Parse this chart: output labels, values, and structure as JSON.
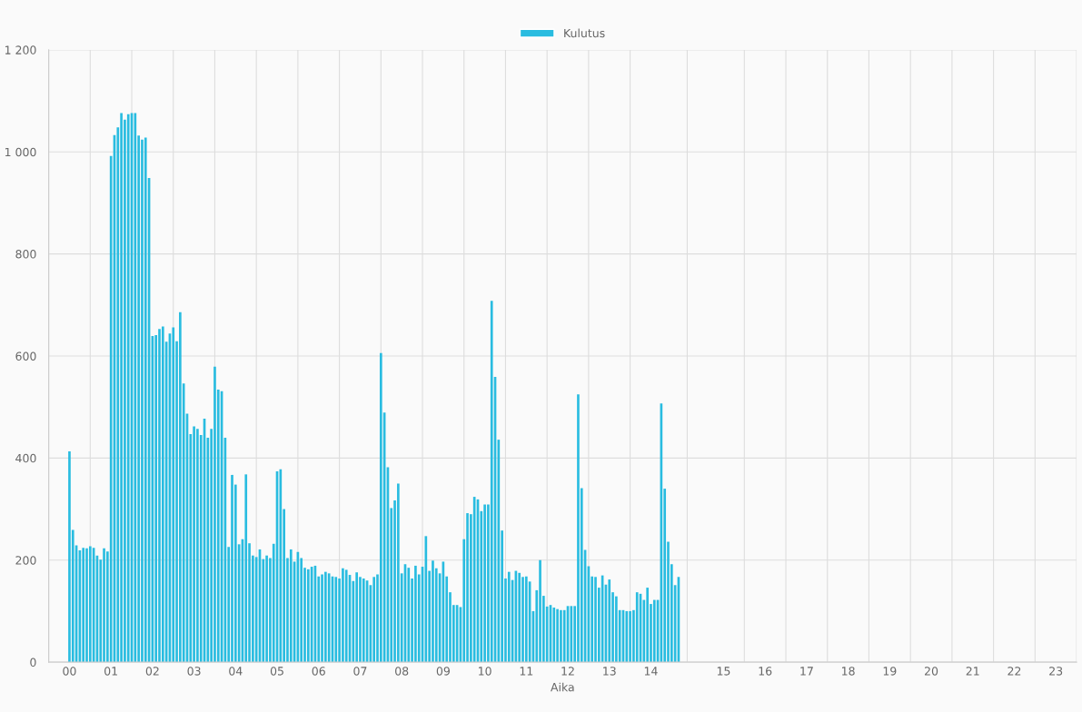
{
  "chart_data": {
    "type": "bar",
    "xlabel": "Aika",
    "legend": "top",
    "grid": true,
    "ylim": [
      0,
      1200
    ],
    "yticks": [
      0,
      200,
      400,
      600,
      800,
      {
        "value": 1000,
        "label": "1 000"
      },
      {
        "value": 1200,
        "label": "1 200"
      }
    ],
    "categories": [
      "00",
      null,
      null,
      null,
      null,
      null,
      null,
      null,
      null,
      null,
      null,
      null,
      "01",
      null,
      null,
      null,
      null,
      null,
      null,
      null,
      null,
      null,
      null,
      null,
      "02",
      null,
      null,
      null,
      null,
      null,
      null,
      null,
      null,
      null,
      null,
      null,
      "03",
      null,
      null,
      null,
      null,
      null,
      null,
      null,
      null,
      null,
      null,
      null,
      "04",
      null,
      null,
      null,
      null,
      null,
      null,
      null,
      null,
      null,
      null,
      null,
      "05",
      null,
      null,
      null,
      null,
      null,
      null,
      null,
      null,
      null,
      null,
      null,
      "06",
      null,
      null,
      null,
      null,
      null,
      null,
      null,
      null,
      null,
      null,
      null,
      "07",
      null,
      null,
      null,
      null,
      null,
      null,
      null,
      null,
      null,
      null,
      null,
      "08",
      null,
      null,
      null,
      null,
      null,
      null,
      null,
      null,
      null,
      null,
      null,
      "09",
      null,
      null,
      null,
      null,
      null,
      null,
      null,
      null,
      null,
      null,
      null,
      "10",
      null,
      null,
      null,
      null,
      null,
      null,
      null,
      null,
      null,
      null,
      null,
      "11",
      null,
      null,
      null,
      null,
      null,
      null,
      null,
      null,
      null,
      null,
      null,
      "12",
      null,
      null,
      null,
      null,
      null,
      null,
      null,
      null,
      null,
      null,
      null,
      "13",
      null,
      null,
      null,
      null,
      null,
      null,
      null,
      null,
      null,
      null,
      null,
      "14",
      null,
      null,
      null,
      null,
      null,
      null,
      null,
      null,
      null,
      null,
      null,
      null,
      null,
      null,
      null,
      null,
      null,
      null,
      null,
      null,
      "15",
      null,
      null,
      null,
      null,
      null,
      null,
      null,
      null,
      null,
      null,
      null,
      "16",
      null,
      null,
      null,
      null,
      null,
      null,
      null,
      null,
      null,
      null,
      null,
      "17",
      null,
      null,
      null,
      null,
      null,
      null,
      null,
      null,
      null,
      null,
      null,
      "18",
      null,
      null,
      null,
      null,
      null,
      null,
      null,
      null,
      null,
      null,
      null,
      "19",
      null,
      null,
      null,
      null,
      null,
      null,
      null,
      null,
      null,
      null,
      null,
      "20",
      null,
      null,
      null,
      null,
      null,
      null,
      null,
      null,
      null,
      null,
      null,
      "21",
      null,
      null,
      null,
      null,
      null,
      null,
      null,
      null,
      null,
      null,
      null,
      "22",
      null,
      null,
      null,
      null,
      null,
      null,
      null,
      null,
      null,
      null,
      null,
      "23"
    ],
    "series": [
      {
        "name": "Kulutus",
        "color": "#29bce0",
        "values": [
          413,
          259,
          229,
          219,
          224,
          223,
          227,
          224,
          209,
          201,
          223,
          217,
          992,
          1033,
          1048,
          1076,
          1063,
          1074,
          1076,
          1076,
          1032,
          1024,
          1028,
          949,
          639,
          641,
          653,
          658,
          628,
          644,
          656,
          629,
          686,
          546,
          487,
          447,
          462,
          457,
          445,
          477,
          440,
          457,
          579,
          534,
          531,
          440,
          226,
          367,
          348,
          231,
          241,
          368,
          233,
          209,
          206,
          221,
          202,
          209,
          204,
          232,
          374,
          378,
          300,
          204,
          221,
          197,
          216,
          204,
          185,
          182,
          187,
          189,
          168,
          172,
          177,
          174,
          168,
          167,
          164,
          184,
          181,
          171,
          159,
          176,
          167,
          164,
          160,
          151,
          167,
          172,
          606,
          489,
          382,
          302,
          317,
          350,
          174,
          192,
          185,
          164,
          189,
          172,
          187,
          247,
          179,
          199,
          184,
          174,
          197,
          168,
          137,
          112,
          112,
          108,
          241,
          292,
          290,
          324,
          319,
          296,
          309,
          309,
          708,
          559,
          436,
          258,
          164,
          177,
          161,
          179,
          175,
          167,
          168,
          158,
          100,
          141,
          200,
          130,
          109,
          112,
          107,
          104,
          102,
          102,
          110,
          110,
          110,
          525,
          341,
          220,
          188,
          168,
          167,
          146,
          170,
          152,
          162,
          137,
          129,
          102,
          102,
          100,
          100,
          102,
          137,
          134,
          122,
          146,
          114,
          122,
          122,
          507,
          340,
          236,
          192,
          151,
          167,
          null,
          null,
          null,
          null,
          null,
          null,
          null,
          null,
          null,
          null,
          null,
          null,
          null,
          null,
          null,
          null,
          null,
          null,
          null,
          null,
          null,
          null,
          null,
          null,
          null,
          null,
          null,
          null,
          null,
          null,
          null,
          null,
          null,
          null,
          null,
          null,
          null,
          null,
          null,
          null,
          null,
          null,
          null,
          null,
          null,
          null,
          null,
          null,
          null,
          null,
          null,
          null,
          null,
          null,
          null,
          null,
          null,
          null,
          null,
          null,
          null,
          null,
          null,
          null,
          null,
          null,
          null,
          null,
          null,
          null,
          null,
          null,
          null,
          null,
          null,
          null,
          null,
          null,
          null,
          null,
          null,
          null,
          null,
          null,
          null,
          null,
          null,
          null,
          null,
          null,
          null,
          null,
          null,
          null,
          null,
          null,
          null,
          null,
          null,
          null,
          null,
          null,
          null,
          null,
          null,
          null,
          null,
          null,
          null
        ]
      }
    ]
  }
}
